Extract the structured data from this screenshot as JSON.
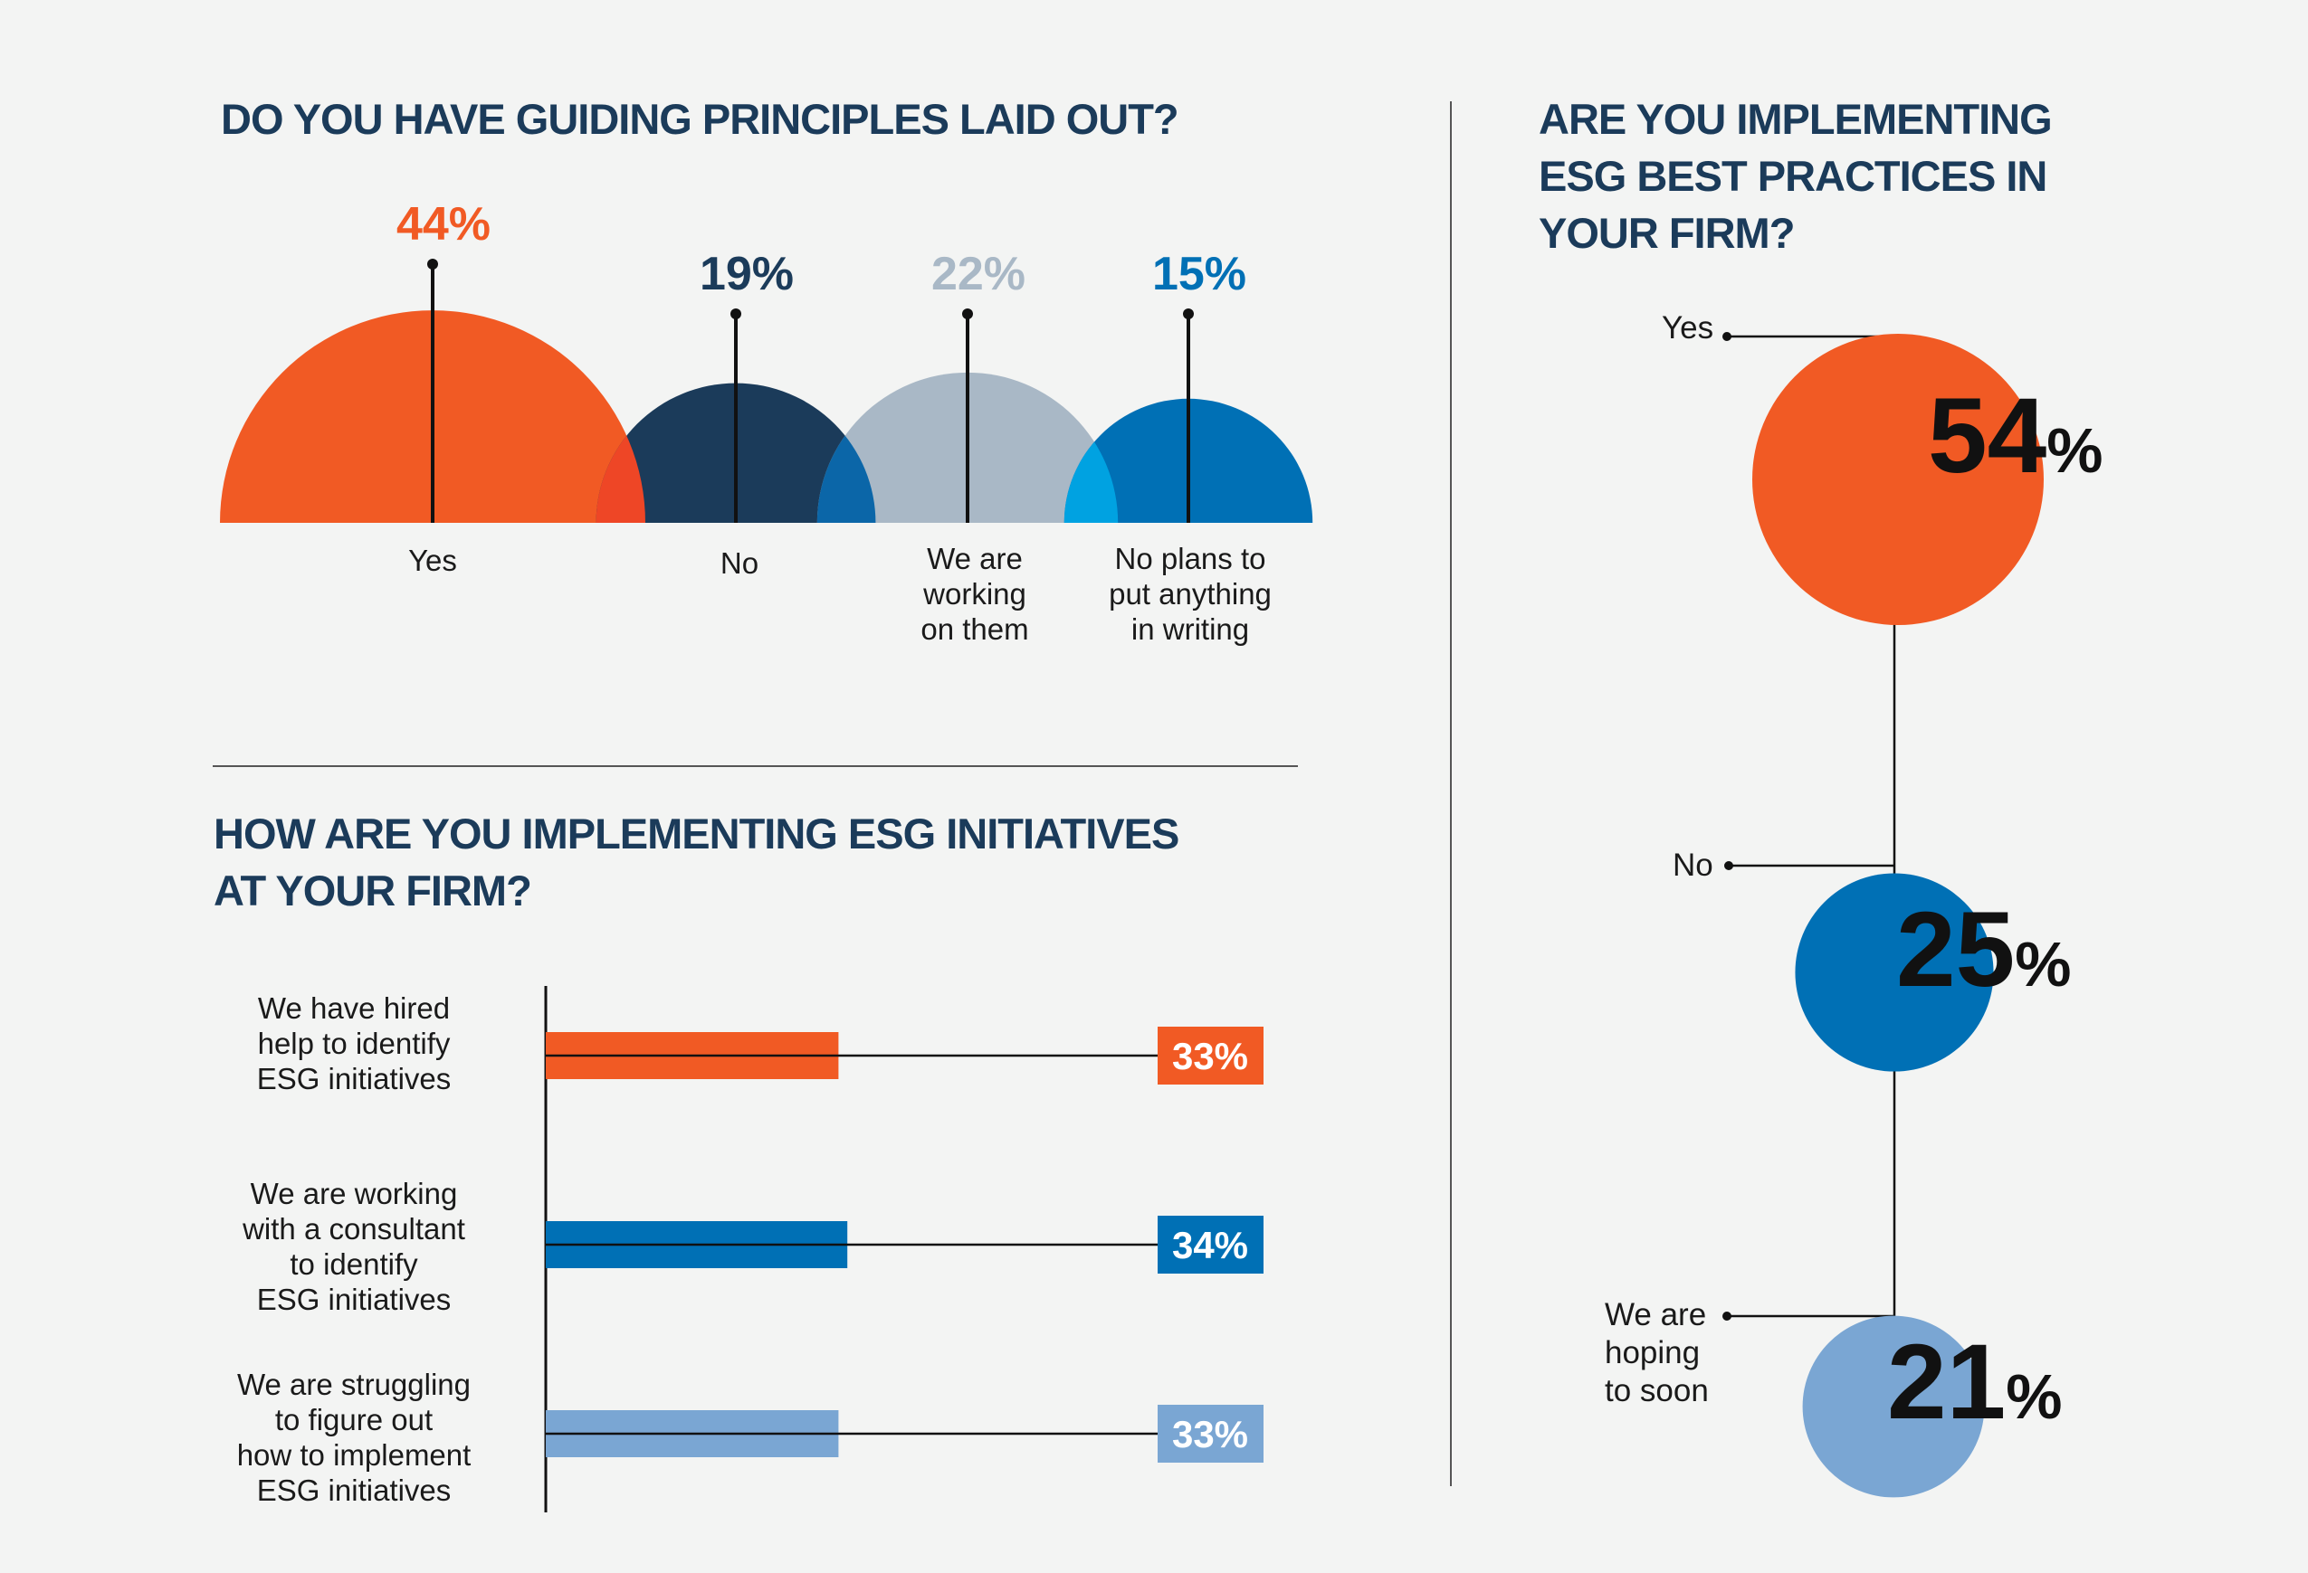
{
  "colors": {
    "orange": "#f15a24",
    "navy": "#1b3b5a",
    "gray_blue": "#a9b8c6",
    "blue": "#0070b5",
    "light_blue": "#7aa6d3",
    "title": "#1b3b5a"
  },
  "chart_data": [
    {
      "type": "area",
      "title": "DO YOU HAVE GUIDING PRINCIPLES LAID OUT?",
      "categories": [
        "Yes",
        "No",
        "We are\nworking\non them",
        "No plans to\nput anything\nin writing"
      ],
      "values": [
        44,
        19,
        22,
        15
      ],
      "value_labels": [
        "44%",
        "19%",
        "22%",
        "15%"
      ],
      "colors": [
        "#f15a24",
        "#1b3b5a",
        "#a9b8c6",
        "#0070b5"
      ]
    },
    {
      "type": "bar",
      "title": "HOW ARE YOU IMPLEMENTING ESG INITIATIVES\nAT YOUR FIRM?",
      "categories": [
        "We have hired\nhelp to identify\nESG initiatives",
        "We are working\nwith a consultant\nto identify\nESG initiatives",
        "We are struggling\nto figure out\nhow to implement\nESG initiatives"
      ],
      "values": [
        33,
        34,
        33
      ],
      "value_labels": [
        "33%",
        "34%",
        "33%"
      ],
      "colors": [
        "#f15a24",
        "#0070b5",
        "#7aa6d3"
      ]
    },
    {
      "type": "scatter",
      "title": "ARE YOU IMPLEMENTING\nESG BEST PRACTICES IN\nYOUR FIRM?",
      "categories": [
        "Yes",
        "No",
        "We are\nhoping\nto soon"
      ],
      "values": [
        54,
        25,
        21
      ],
      "value_labels": [
        "54",
        "25",
        "21"
      ],
      "percent_sign": "%",
      "colors": [
        "#f15a24",
        "#0070b5",
        "#7aa6d3"
      ]
    }
  ]
}
